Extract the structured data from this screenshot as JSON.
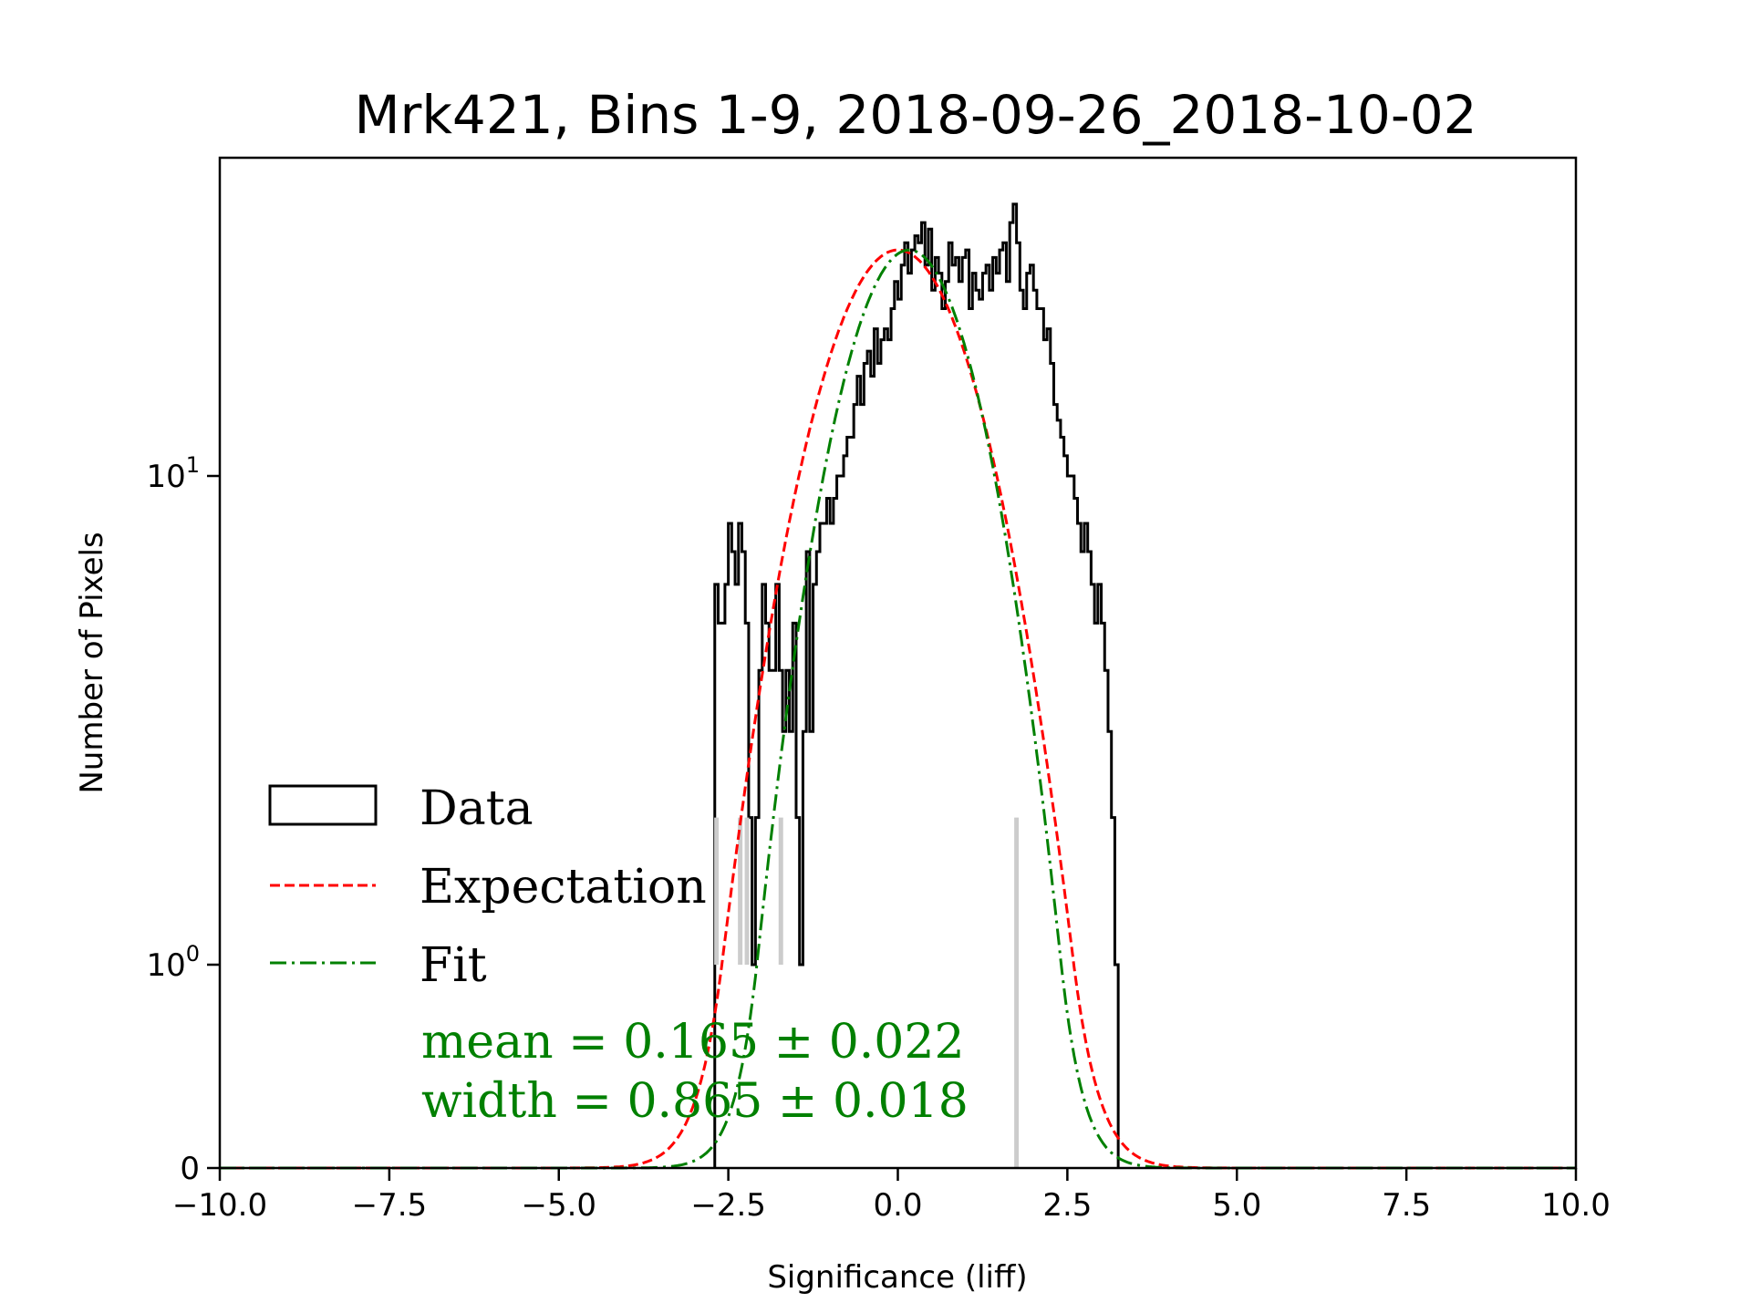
{
  "chart_data": {
    "type": "line",
    "title": "Mrk421, Bins 1-9, 2018-09-26_2018-10-02",
    "xlabel": "Significance (liff)",
    "ylabel": "Number of Pixels",
    "xlim": [
      -10,
      10
    ],
    "yscale": "symlog",
    "ylim": [
      0,
      45
    ],
    "x_ticks": [
      -10,
      -7.5,
      -5,
      -2.5,
      0,
      2.5,
      5,
      7.5,
      10
    ],
    "x_tick_labels": [
      "−10.0",
      "−7.5",
      "−5.0",
      "−2.5",
      "0.0",
      "2.5",
      "5.0",
      "7.5",
      "10.0"
    ],
    "y_ticks": [
      0,
      1,
      10
    ],
    "y_tick_labels": [
      {
        "base": "0",
        "exp": ""
      },
      {
        "base": "10",
        "exp": "0"
      },
      {
        "base": "10",
        "exp": "1"
      }
    ],
    "grid": false,
    "legend_position": "lower-left",
    "legend": [
      {
        "label": "Data",
        "style": "histogram-step",
        "color": "#000000"
      },
      {
        "label": "Expectation",
        "style": "dashed",
        "color": "#ff0000"
      },
      {
        "label": "Fit",
        "style": "dash-dot",
        "color": "#008000"
      }
    ],
    "annotations": [
      "mean = 0.165 ± 0.022",
      "width = 0.865 ± 0.018"
    ],
    "series": [
      {
        "name": "Data",
        "kind": "histogram",
        "bin_width": 0.05,
        "bin_start": -2.7,
        "counts": [
          6,
          5,
          5,
          6,
          8,
          7,
          6,
          8,
          7,
          5,
          2,
          1,
          2,
          4,
          6,
          5,
          4,
          4,
          6,
          4,
          3,
          4,
          3,
          5,
          2,
          1,
          3,
          7,
          3,
          6,
          7,
          8,
          8,
          9,
          8,
          9,
          10,
          10,
          11,
          12,
          12,
          14,
          16,
          14,
          17,
          18,
          16,
          20,
          17,
          19,
          20,
          19,
          22,
          25,
          23,
          27,
          30,
          26,
          29,
          31,
          30,
          33,
          27,
          32,
          24,
          28,
          26,
          22,
          25,
          30,
          27,
          28,
          25,
          28,
          29,
          22,
          26,
          24,
          23,
          26,
          27,
          24,
          28,
          26,
          29,
          30,
          25,
          33,
          36,
          30,
          24,
          22,
          26,
          27,
          24,
          22,
          22,
          19,
          20,
          17,
          14,
          13,
          12,
          11,
          10,
          10,
          9,
          8,
          7,
          8,
          7,
          6,
          5,
          6,
          5,
          4,
          3,
          2,
          1
        ],
        "color": "#000000"
      },
      {
        "name": "Expectation",
        "kind": "gaussian",
        "mean": 0.0,
        "sigma": 1.0,
        "peak": 29,
        "color": "#ff0000"
      },
      {
        "name": "Fit",
        "kind": "gaussian",
        "mean": 0.165,
        "sigma": 0.865,
        "peak": 29,
        "color": "#008000"
      }
    ],
    "error_bars": {
      "color": "#cccccc",
      "x": [
        -2.675,
        -2.325,
        -2.225,
        -1.725,
        1.75
      ]
    }
  }
}
